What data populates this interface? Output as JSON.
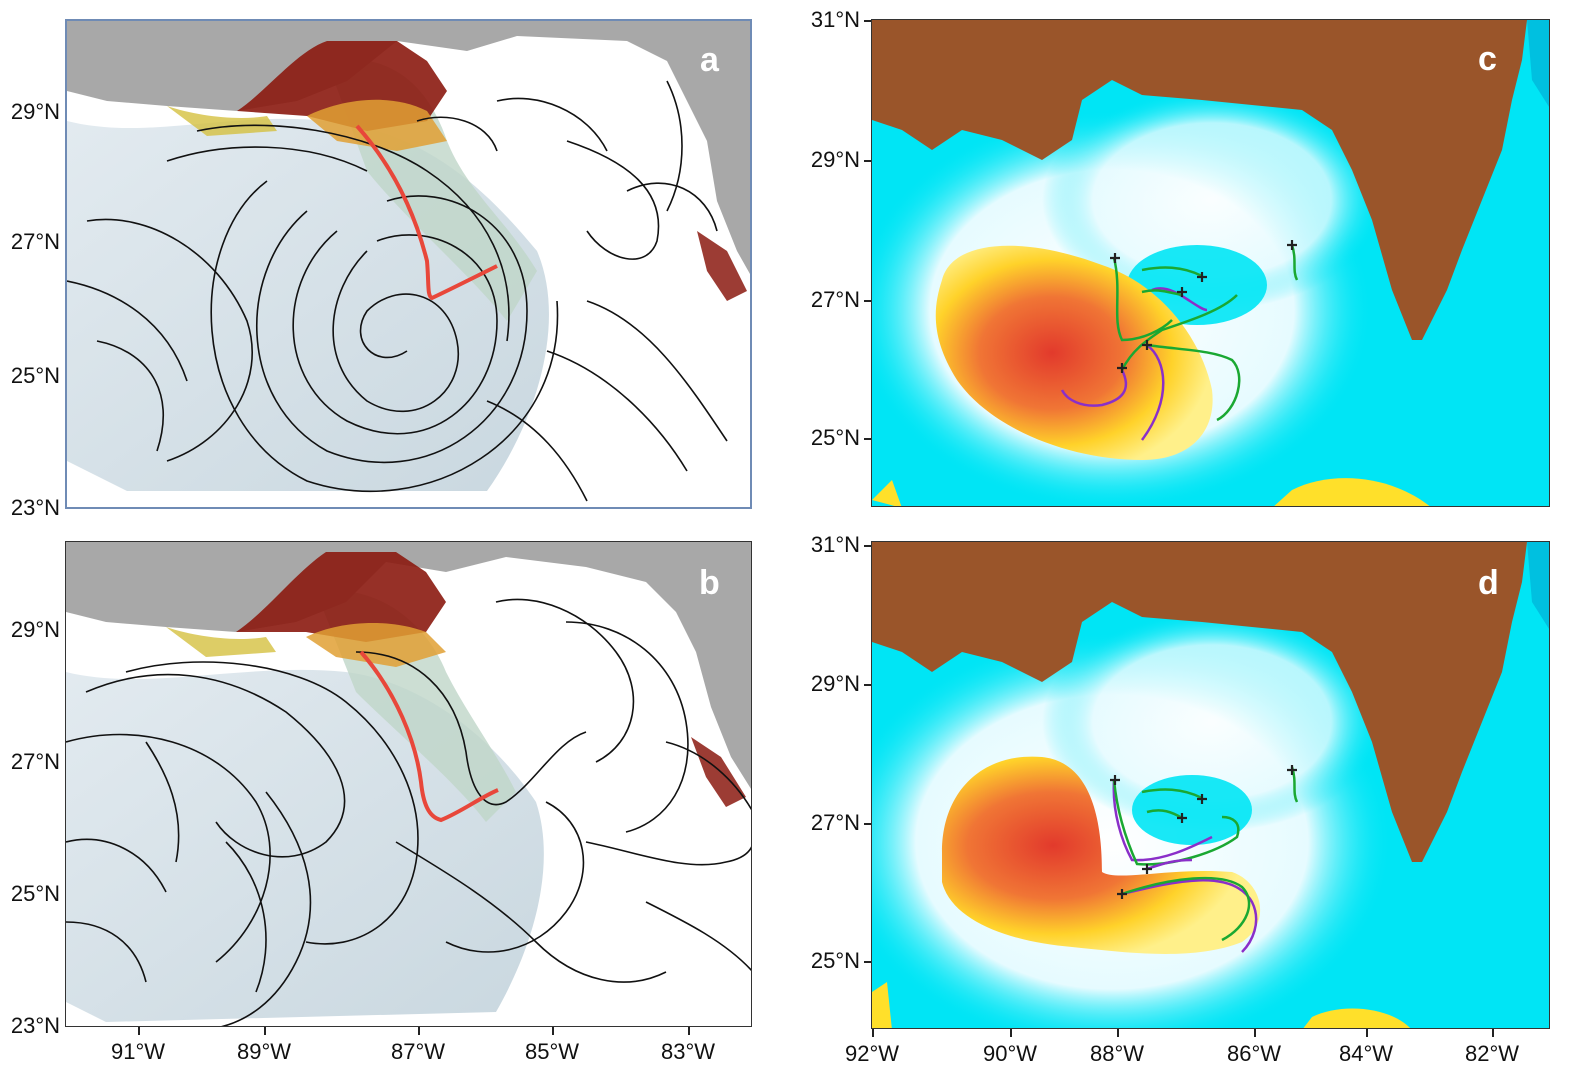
{
  "panels": {
    "a": {
      "letter": "a"
    },
    "b": {
      "letter": "b"
    },
    "c": {
      "letter": "c"
    },
    "d": {
      "letter": "d"
    }
  },
  "left_lat_labels": {
    "top": [
      "29°N",
      "27°N",
      "25°N",
      "23°N"
    ],
    "bottom": [
      "29°N",
      "27°N",
      "25°N",
      "23°N"
    ]
  },
  "left_lon_labels": [
    "91°W",
    "89°W",
    "87°W",
    "85°W",
    "83°W"
  ],
  "right_lat_labels": {
    "top": [
      "31°N",
      "29°N",
      "27°N",
      "25°N"
    ],
    "bottom": [
      "31°N",
      "29°N",
      "27°N",
      "25°N"
    ]
  },
  "right_lon_labels": [
    "92°W",
    "90°W",
    "88°W",
    "86°W",
    "84°W",
    "82°W"
  ],
  "colors": {
    "land_gray": "#a8a8a8",
    "land_brown": "#9a552a",
    "ocean_cyan": "#00e5f5",
    "warm_red": "#e83b2a",
    "warm_yellow": "#ffe02a",
    "track_red": "#e8473a",
    "drifter_green": "#1aa832",
    "drifter_purple": "#8a2fc9",
    "streamline_black": "#111111"
  }
}
